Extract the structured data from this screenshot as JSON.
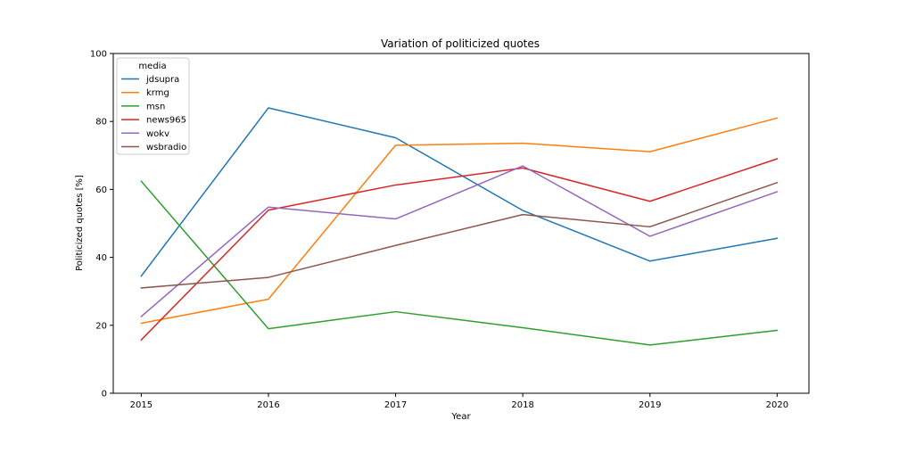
{
  "chart_data": {
    "type": "line",
    "title": "Variation of politicized quotes",
    "xlabel": "Year",
    "ylabel": "Politicized quotes [%]",
    "categories": [
      "2015",
      "2016",
      "2017",
      "2018",
      "2019",
      "2020"
    ],
    "xlim": [
      2014.78,
      2020.25
    ],
    "ylim": [
      0,
      100
    ],
    "yticks": [
      0,
      20,
      40,
      60,
      80,
      100
    ],
    "grid": false,
    "legend": {
      "title": "media",
      "placement": "top-left"
    },
    "series": [
      {
        "name": "jdsupra",
        "color": "#1f77b4",
        "values": [
          34.5,
          84.0,
          75.2,
          53.8,
          38.9,
          45.6
        ]
      },
      {
        "name": "krmg",
        "color": "#ff7f0e",
        "values": [
          20.6,
          27.7,
          73.0,
          73.6,
          71.1,
          81.0
        ]
      },
      {
        "name": "msn",
        "color": "#2ca02c",
        "values": [
          62.4,
          19.0,
          24.0,
          19.3,
          14.2,
          18.5
        ]
      },
      {
        "name": "news965",
        "color": "#d62728",
        "values": [
          15.7,
          53.9,
          61.3,
          66.3,
          56.5,
          69.0
        ]
      },
      {
        "name": "wokv",
        "color": "#9467bd",
        "values": [
          22.6,
          54.8,
          51.3,
          66.9,
          46.2,
          59.3
        ]
      },
      {
        "name": "wsbradio",
        "color": "#8c564b",
        "values": [
          31.0,
          34.1,
          43.5,
          52.6,
          49.0,
          62.0
        ]
      }
    ]
  }
}
